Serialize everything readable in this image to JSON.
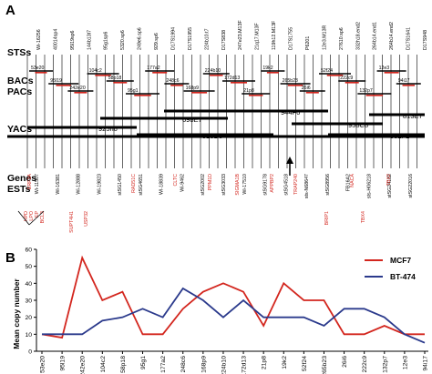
{
  "panel_a": {
    "letter": "A",
    "row_labels": {
      "sts": "STSs",
      "bacs": "BACs",
      "pacs": "PACs",
      "yacs": "YACs",
      "genes": "Genes",
      "ests": "ESTs"
    },
    "sts_markers": [
      "Wi-16256",
      "40014sp4",
      "95l19sp6",
      "144b13t7",
      "95g1sp6",
      "5320.sp6",
      "249e6.sp6",
      "929.sp6",
      "D17S1994",
      "D17S1955",
      "224b10.t7",
      "D17S838",
      "247e23.M13F",
      "21q17.M13F",
      "119h12.M13F",
      "D17S1755",
      "P6201",
      "12e3.M13R",
      "27610.sp6",
      "332h18.end2",
      "264b14.end1",
      "264b14.end2",
      "D17S1641",
      "D17S948"
    ],
    "bac_pac_clones": [
      "53e20",
      "95l19",
      "242e20",
      "104c2",
      "58p18",
      "95g1",
      "177a2",
      "248c6",
      "168p9",
      "224b10",
      "172d13",
      "21p8",
      "19k2",
      "265b23",
      "26i6",
      "52f24",
      "222c9",
      "132p7",
      "12e3",
      "94i17"
    ],
    "yac_clones": [
      "925h6",
      "698E7",
      "913D6",
      "944F6",
      "958C8",
      "981F1",
      "813E7"
    ],
    "genes_red": [
      "ERF3A",
      "RAD51C",
      "CLTC",
      "PPM1D",
      "SIGMA1B",
      "APPBP2",
      "TRAP240",
      "NACA",
      "TBX2"
    ],
    "genes_black": [
      "HPD",
      "LPO",
      "EP",
      "BCL3",
      "SUPT4H1",
      "USP32",
      "BRIP1",
      "TBX4"
    ],
    "ests": [
      "Wi-11507",
      "Wi-16381",
      "Wi-12888",
      "Wi-19823",
      "stSG1450",
      "stSG4651",
      "WI-18839",
      "Wi-9462",
      "stSG2002",
      "stSG3033",
      "Wi-17510",
      "stSG9178",
      "stSG4518",
      "sts-N68647",
      "stSG8956",
      "FB16A2",
      "sts-H06218",
      "stSG24182",
      "stSG22016"
    ]
  },
  "panel_b": {
    "letter": "B",
    "chart_data": {
      "type": "line",
      "categories": [
        "53e20",
        "95l19",
        "242e20",
        "104c2",
        "58p18",
        "95g1",
        "177a2",
        "248c6",
        "168p9",
        "224b10",
        "172d13",
        "21p8",
        "19k2",
        "52f24",
        "265b23",
        "26i6",
        "222c9",
        "132p7",
        "12e3",
        "94i17"
      ],
      "series": [
        {
          "name": "MCF7",
          "color": "#d3261e",
          "values": [
            10,
            8,
            55,
            30,
            35,
            10,
            10,
            25,
            35,
            40,
            35,
            15,
            40,
            30,
            30,
            10,
            10,
            15,
            10,
            10
          ]
        },
        {
          "name": "BT-474",
          "color": "#2b3a8c",
          "values": [
            10,
            10,
            10,
            18,
            20,
            25,
            20,
            37,
            30,
            20,
            30,
            20,
            20,
            20,
            15,
            25,
            25,
            20,
            10,
            5
          ]
        }
      ],
      "xlabel": "",
      "ylabel": "Mean copy number",
      "ylim": [
        0,
        60
      ],
      "yticks": [
        0,
        10,
        20,
        30,
        40,
        50,
        60
      ],
      "grid": false,
      "legend_position": "top-right"
    }
  }
}
